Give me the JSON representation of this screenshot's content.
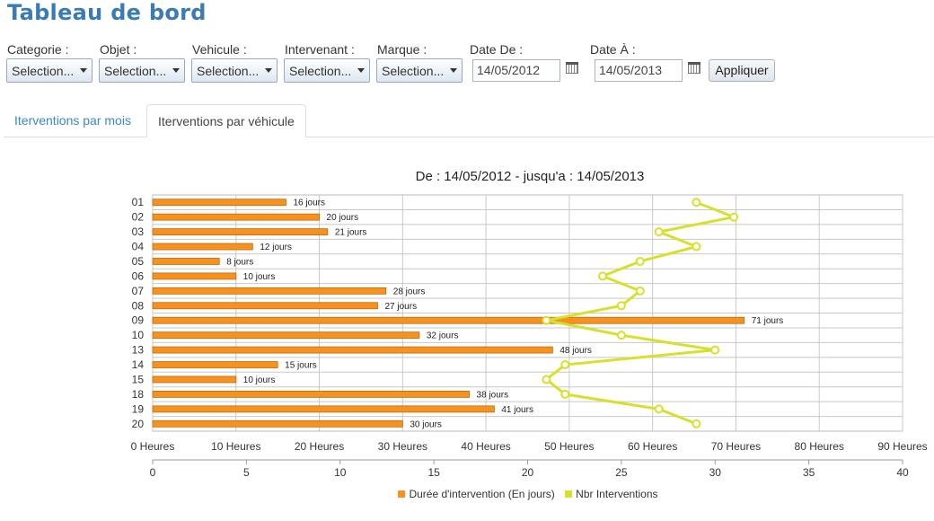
{
  "page": {
    "title": "Tableau de bord"
  },
  "filters": {
    "categorie": {
      "label": "Categorie :",
      "value": "Selection..."
    },
    "objet": {
      "label": "Objet :",
      "value": "Selection..."
    },
    "vehicule": {
      "label": "Vehicule :",
      "value": "Selection..."
    },
    "intervenant": {
      "label": "Intervenant :",
      "value": "Selection..."
    },
    "marque": {
      "label": "Marque :",
      "value": "Selection..."
    },
    "date_de": {
      "label": "Date De :",
      "value": "14/05/2012"
    },
    "date_a": {
      "label": "Date À :",
      "value": "14/05/2013"
    },
    "apply_label": "Appliquer"
  },
  "tabs": [
    {
      "label": "Iterventions par mois",
      "active": false
    },
    {
      "label": "Iterventions par véhicule",
      "active": true
    }
  ],
  "colors": {
    "bar": "#f7921e",
    "bar_stroke": "#c06a10",
    "line": "#d7e02d",
    "accent": "#3a8ac4"
  },
  "chart_data": {
    "type": "bar",
    "orientation": "horizontal",
    "title": "De : 14/05/2012 - jusqu'a : 14/05/2013",
    "categories": [
      "01",
      "02",
      "03",
      "04",
      "05",
      "06",
      "07",
      "08",
      "09",
      "10",
      "13",
      "14",
      "15",
      "18",
      "19",
      "20"
    ],
    "series": [
      {
        "name": "Durée d'intervention (En jours)",
        "type": "bar",
        "axis": "x-top",
        "values": [
          16,
          20,
          21,
          12,
          8,
          10,
          28,
          27,
          71,
          32,
          48,
          15,
          10,
          38,
          41,
          30
        ],
        "unit_suffix": "jours"
      },
      {
        "name": "Nbr Interventions",
        "type": "line",
        "axis": "x-bottom",
        "values": [
          29,
          31,
          27,
          29,
          26,
          24,
          26,
          25,
          21,
          25,
          30,
          22,
          21,
          22,
          27,
          29
        ]
      }
    ],
    "x_top_axis": {
      "min": 0,
      "max": 90,
      "step": 10,
      "tick_suffix": "Heures"
    },
    "x_bottom_axis": {
      "min": 0,
      "max": 40,
      "step": 5
    },
    "grid": true,
    "legend": "bottom-center"
  }
}
